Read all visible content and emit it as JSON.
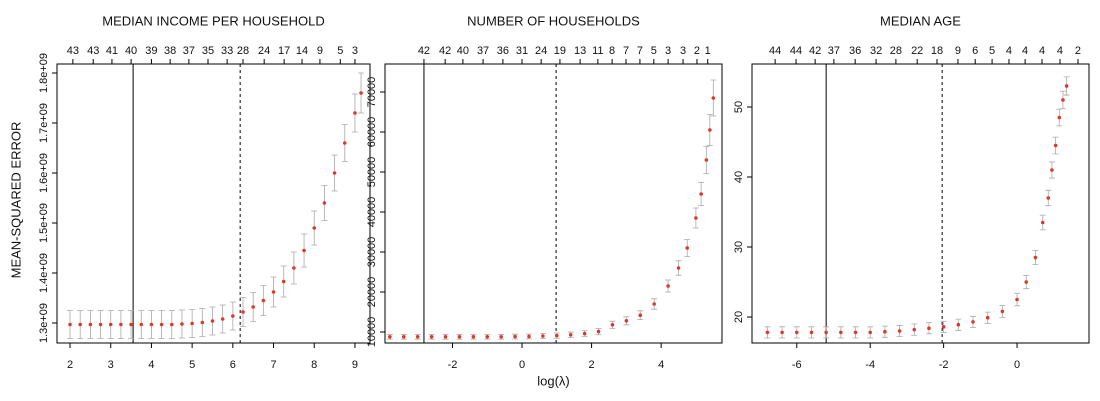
{
  "chart_data": [
    {
      "type": "errorbar",
      "title": "MEDIAN INCOME PER HOUSEHOLD",
      "ylabel": "MEAN-SQUARED ERROR",
      "x": [
        2.0,
        2.25,
        2.5,
        2.75,
        3.0,
        3.25,
        3.5,
        3.75,
        4.0,
        4.25,
        4.5,
        4.75,
        5.0,
        5.25,
        5.5,
        5.75,
        6.0,
        6.25,
        6.5,
        6.75,
        7.0,
        7.25,
        7.5,
        7.75,
        8.0,
        8.25,
        8.5,
        8.75,
        9.0,
        9.15
      ],
      "values": [
        1297000000,
        1297000000,
        1297000000,
        1297000000,
        1297000000,
        1297000000,
        1297000000,
        1297000000,
        1297000000,
        1297000000,
        1297000000,
        1298000000,
        1299000000,
        1301000000,
        1304000000,
        1308000000,
        1314000000,
        1322000000,
        1332000000,
        1345000000,
        1362000000,
        1383000000,
        1410000000,
        1445000000,
        1490000000,
        1540000000,
        1600000000,
        1660000000,
        1720000000,
        1760000000
      ],
      "errors": [
        28000000,
        28000000,
        28000000,
        28000000,
        28000000,
        28000000,
        28000000,
        28000000,
        28000000,
        28000000,
        28000000,
        28000000,
        28000000,
        28000000,
        28000000,
        28000000,
        28000000,
        29000000,
        29000000,
        30000000,
        30000000,
        31000000,
        32000000,
        33000000,
        34000000,
        35000000,
        36000000,
        37000000,
        38000000,
        40000000
      ],
      "xlim": [
        1.68,
        9.37
      ],
      "xticks": [
        2,
        3,
        4,
        5,
        6,
        7,
        8,
        9
      ],
      "ylim": [
        1260000000,
        1818000000
      ],
      "yticks": [
        {
          "value": 1300000000,
          "label": "1.3e+09"
        },
        {
          "value": 1400000000,
          "label": "1.4e+09"
        },
        {
          "value": 1500000000,
          "label": "1.5e+09"
        },
        {
          "value": 1600000000,
          "label": "1.6e+09"
        },
        {
          "value": 1700000000,
          "label": "1.7e+09"
        },
        {
          "value": 1800000000,
          "label": "1.8e+09"
        }
      ],
      "top_xticks": [
        {
          "value": 2.07,
          "label": "43"
        },
        {
          "value": 2.57,
          "label": "43"
        },
        {
          "value": 3.03,
          "label": "41"
        },
        {
          "value": 3.5,
          "label": "40"
        },
        {
          "value": 4.0,
          "label": "39"
        },
        {
          "value": 4.46,
          "label": "38"
        },
        {
          "value": 4.92,
          "label": "37"
        },
        {
          "value": 5.39,
          "label": "35"
        },
        {
          "value": 5.86,
          "label": "33"
        },
        {
          "value": 6.25,
          "label": "28"
        },
        {
          "value": 6.77,
          "label": "24"
        },
        {
          "value": 7.26,
          "label": "17"
        },
        {
          "value": 7.7,
          "label": "14"
        },
        {
          "value": 8.14,
          "label": "9"
        },
        {
          "value": 8.64,
          "label": "5"
        },
        {
          "value": 9.0,
          "label": "3"
        }
      ],
      "vlines": [
        3.55,
        6.18
      ],
      "vline_styles": [
        "solid",
        "dashed"
      ],
      "point_color": "#d93a2b",
      "errorbar_color": "#a9a9a9"
    },
    {
      "type": "errorbar",
      "title": "NUMBER OF HOUSEHOLDS",
      "xlabel": "log(λ)",
      "x": [
        -3.8,
        -3.4,
        -3.0,
        -2.6,
        -2.2,
        -1.8,
        -1.4,
        -1.0,
        -0.6,
        -0.2,
        0.2,
        0.6,
        1.0,
        1.4,
        1.8,
        2.2,
        2.6,
        3.0,
        3.4,
        3.8,
        4.2,
        4.5,
        4.75,
        5.0,
        5.15,
        5.3,
        5.4,
        5.5
      ],
      "values": [
        8800,
        8800,
        8800,
        8800,
        8800,
        8800,
        8800,
        8800,
        8800,
        8850,
        8900,
        9000,
        9100,
        9300,
        9600,
        10100,
        11800,
        12800,
        14200,
        17000,
        21500,
        26000,
        31000,
        38500,
        44500,
        53000,
        60500,
        68500
      ],
      "errors": [
        600,
        600,
        600,
        600,
        600,
        600,
        600,
        600,
        600,
        600,
        600,
        620,
        650,
        680,
        720,
        780,
        900,
        1000,
        1100,
        1300,
        1500,
        1800,
        2100,
        2500,
        2900,
        3400,
        3900,
        4500
      ],
      "xlim": [
        -3.94,
        5.75
      ],
      "xticks": [
        -2,
        0,
        2,
        4
      ],
      "ylim": [
        7250,
        77000
      ],
      "yticks": [
        10000,
        20000,
        30000,
        40000,
        50000,
        60000,
        70000
      ],
      "top_xticks": [
        {
          "value": -2.82,
          "label": "42"
        },
        {
          "value": -2.21,
          "label": "42"
        },
        {
          "value": -1.7,
          "label": "40"
        },
        {
          "value": -1.12,
          "label": "37"
        },
        {
          "value": -0.55,
          "label": "36"
        },
        {
          "value": 0,
          "label": "31"
        },
        {
          "value": 0.55,
          "label": "24"
        },
        {
          "value": 1.09,
          "label": "19"
        },
        {
          "value": 1.67,
          "label": "13"
        },
        {
          "value": 2.18,
          "label": "11"
        },
        {
          "value": 2.59,
          "label": "8"
        },
        {
          "value": 2.99,
          "label": "7"
        },
        {
          "value": 3.39,
          "label": "7"
        },
        {
          "value": 3.79,
          "label": "5"
        },
        {
          "value": 4.2,
          "label": "3"
        },
        {
          "value": 4.63,
          "label": "3"
        },
        {
          "value": 5.03,
          "label": "2"
        },
        {
          "value": 5.34,
          "label": "1"
        }
      ],
      "vlines": [
        -2.82,
        0.98
      ],
      "vline_styles": [
        "solid",
        "dashed"
      ],
      "point_color": "#d93a2b",
      "errorbar_color": "#a9a9a9"
    },
    {
      "type": "errorbar",
      "title": "MEDIAN AGE",
      "x": [
        -6.8,
        -6.4,
        -6.0,
        -5.6,
        -5.2,
        -4.8,
        -4.4,
        -4.0,
        -3.6,
        -3.2,
        -2.8,
        -2.4,
        -2.0,
        -1.6,
        -1.2,
        -0.8,
        -0.4,
        0,
        0.25,
        0.5,
        0.7,
        0.85,
        0.95,
        1.05,
        1.15,
        1.25,
        1.35
      ],
      "values": [
        17.8,
        17.8,
        17.8,
        17.8,
        17.8,
        17.8,
        17.8,
        17.8,
        17.9,
        18.0,
        18.2,
        18.4,
        18.6,
        18.9,
        19.3,
        19.9,
        20.8,
        22.5,
        25,
        28.5,
        33.5,
        37,
        41,
        44.5,
        48.5,
        51,
        53
      ],
      "errors": [
        0.8,
        0.8,
        0.8,
        0.8,
        0.8,
        0.8,
        0.8,
        0.8,
        0.8,
        0.8,
        0.8,
        0.8,
        0.8,
        0.8,
        0.8,
        0.8,
        0.85,
        0.9,
        0.95,
        1.0,
        1.05,
        1.1,
        1.15,
        1.2,
        1.2,
        1.25,
        1.3
      ],
      "xlim": [
        -7.22,
        1.96
      ],
      "xticks": [
        -6,
        -4,
        -2,
        0
      ],
      "ylim": [
        16.29,
        56.14
      ],
      "yticks": [
        20,
        30,
        40,
        50
      ],
      "top_xticks": [
        {
          "value": -6.59,
          "label": "44"
        },
        {
          "value": -6.02,
          "label": "44"
        },
        {
          "value": -5.5,
          "label": "42"
        },
        {
          "value": -4.99,
          "label": "37"
        },
        {
          "value": -4.41,
          "label": "36"
        },
        {
          "value": -3.84,
          "label": "32"
        },
        {
          "value": -3.3,
          "label": "28"
        },
        {
          "value": -2.72,
          "label": "22"
        },
        {
          "value": -2.18,
          "label": "18"
        },
        {
          "value": -1.61,
          "label": "9"
        },
        {
          "value": -1.14,
          "label": "6"
        },
        {
          "value": -0.68,
          "label": "5"
        },
        {
          "value": -0.22,
          "label": "4"
        },
        {
          "value": 0.22,
          "label": "4"
        },
        {
          "value": 0.68,
          "label": "4"
        },
        {
          "value": 1.17,
          "label": "4"
        },
        {
          "value": 1.66,
          "label": "2"
        }
      ],
      "vlines": [
        -5.2,
        -2.04
      ],
      "vline_styles": [
        "solid",
        "dashed"
      ],
      "point_color": "#d93a2b",
      "errorbar_color": "#a9a9a9"
    }
  ]
}
